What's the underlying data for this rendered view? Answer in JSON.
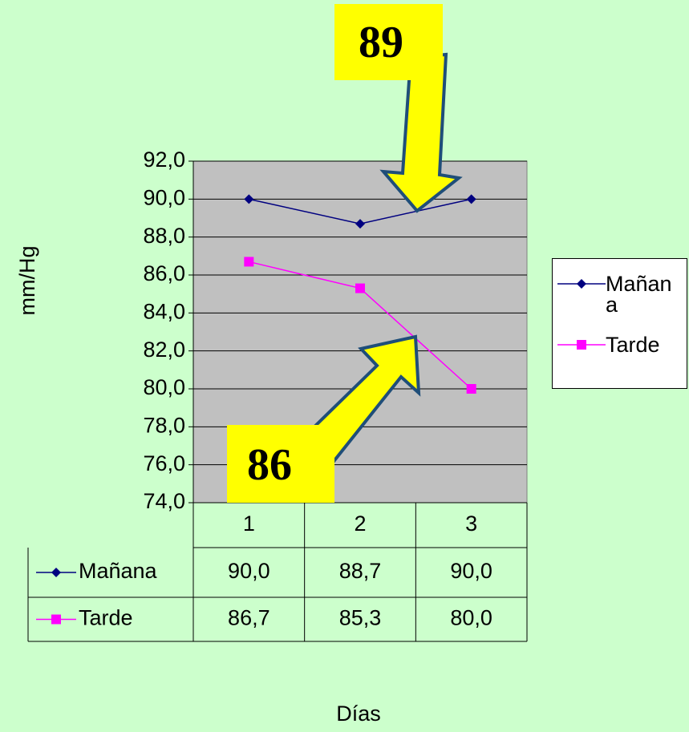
{
  "chart_data": {
    "type": "line",
    "x_label": "Días",
    "y_label": "mm/Hg",
    "categories": [
      "1",
      "2",
      "3"
    ],
    "series": [
      {
        "name": "Mañana",
        "color": "#000080",
        "marker": "diamond",
        "values": [
          90,
          88.7,
          90
        ],
        "value_labels": [
          "90,0",
          "88,7",
          "90,0"
        ]
      },
      {
        "name": "Tarde",
        "color": "#ff00ff",
        "marker": "square",
        "values": [
          86.7,
          85.3,
          80
        ],
        "value_labels": [
          "86,7",
          "85,3",
          "80,0"
        ]
      }
    ],
    "ylim": [
      74,
      92
    ],
    "yticks": [
      {
        "value": 74,
        "label": "74,0"
      },
      {
        "value": 76,
        "label": "76,0"
      },
      {
        "value": 78,
        "label": "78,0"
      },
      {
        "value": 80,
        "label": "80,0"
      },
      {
        "value": 82,
        "label": "82,0"
      },
      {
        "value": 84,
        "label": "84,0"
      },
      {
        "value": 86,
        "label": "86,0"
      },
      {
        "value": 88,
        "label": "88,0"
      },
      {
        "value": 90,
        "label": "90,0"
      },
      {
        "value": 92,
        "label": "92,0"
      }
    ],
    "grid": true,
    "legend": "right",
    "annotations": [
      {
        "text": "89"
      },
      {
        "text": "86"
      }
    ]
  }
}
